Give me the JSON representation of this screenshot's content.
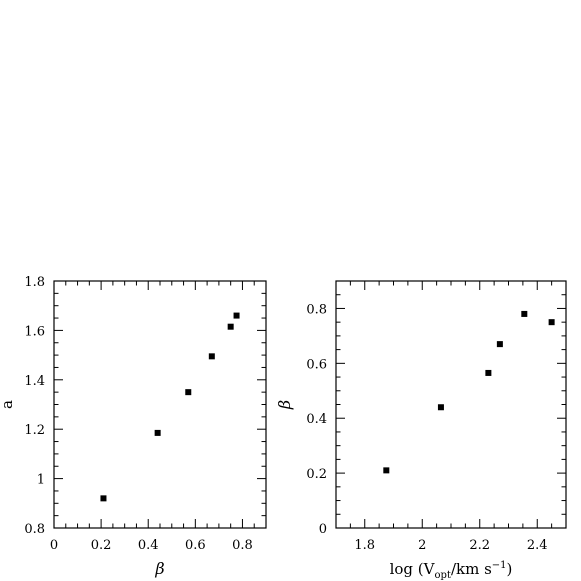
{
  "chart_data": [
    {
      "type": "scatter",
      "xlabel": "β",
      "ylabel": "a",
      "xlim": [
        0,
        0.9
      ],
      "ylim": [
        0.8,
        1.8
      ],
      "xticks": [
        0,
        0.2,
        0.4,
        0.6,
        0.8
      ],
      "xtick_labels": [
        "0",
        "0.2",
        "0.4",
        "0.6",
        "0.8"
      ],
      "yticks": [
        0.8,
        1,
        1.2,
        1.4,
        1.6,
        1.8
      ],
      "ytick_labels": [
        "0.8",
        "1",
        "1.2",
        "1.4",
        "1.6",
        "1.8"
      ],
      "x_minor_step": 0.05,
      "y_minor_step": 0.05,
      "points": [
        {
          "x": 0.21,
          "y": 0.92
        },
        {
          "x": 0.44,
          "y": 1.185
        },
        {
          "x": 0.57,
          "y": 1.35
        },
        {
          "x": 0.67,
          "y": 1.495
        },
        {
          "x": 0.75,
          "y": 1.615
        },
        {
          "x": 0.775,
          "y": 1.66
        }
      ]
    },
    {
      "type": "scatter",
      "xlabel_parts": [
        "log (V",
        "opt",
        "/km s",
        "−1",
        ")"
      ],
      "ylabel": "β",
      "xlim": [
        1.7,
        2.5
      ],
      "ylim": [
        0,
        0.9
      ],
      "xticks": [
        1.8,
        2.0,
        2.2,
        2.4
      ],
      "xtick_labels": [
        "1.8",
        "2",
        "2.2",
        "2.4"
      ],
      "yticks": [
        0,
        0.2,
        0.4,
        0.6,
        0.8
      ],
      "ytick_labels": [
        "0",
        "0.2",
        "0.4",
        "0.6",
        "0.8"
      ],
      "x_minor_step": 0.05,
      "y_minor_step": 0.05,
      "points": [
        {
          "x": 1.875,
          "y": 0.21
        },
        {
          "x": 2.065,
          "y": 0.44
        },
        {
          "x": 2.23,
          "y": 0.565
        },
        {
          "x": 2.27,
          "y": 0.67
        },
        {
          "x": 2.355,
          "y": 0.78
        },
        {
          "x": 2.45,
          "y": 0.75
        }
      ]
    }
  ]
}
